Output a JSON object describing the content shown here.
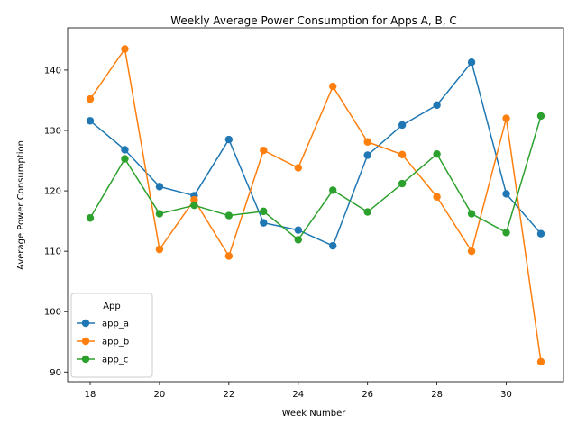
{
  "chart_data": {
    "type": "line",
    "title": "Weekly Average Power Consumption for Apps A, B, C",
    "xlabel": "Week Number",
    "ylabel": "Average Power Consumption",
    "x": [
      18,
      19,
      20,
      21,
      22,
      23,
      24,
      25,
      26,
      27,
      28,
      29,
      30,
      31
    ],
    "xlim": [
      17.35,
      31.65
    ],
    "ylim": [
      88.4,
      147.0
    ],
    "xticks": [
      18,
      20,
      22,
      24,
      26,
      28,
      30
    ],
    "yticks": [
      90,
      100,
      110,
      120,
      130,
      140
    ],
    "grid": false,
    "legend": {
      "title": "App",
      "placement": "lower-left"
    },
    "series": [
      {
        "name": "app_a",
        "color": "#1f77b4",
        "values": [
          131.6,
          126.8,
          120.7,
          119.2,
          128.5,
          114.7,
          113.5,
          110.9,
          125.9,
          130.9,
          134.2,
          141.3,
          119.5,
          112.9
        ]
      },
      {
        "name": "app_b",
        "color": "#ff7f0e",
        "values": [
          135.2,
          143.5,
          110.3,
          118.5,
          109.2,
          126.7,
          123.8,
          137.3,
          128.1,
          126.0,
          119.0,
          110.0,
          132.0,
          91.7
        ]
      },
      {
        "name": "app_c",
        "color": "#2ca02c",
        "values": [
          115.5,
          125.3,
          116.2,
          117.6,
          115.9,
          116.6,
          111.9,
          120.1,
          116.5,
          121.2,
          126.1,
          116.2,
          113.1,
          132.4
        ]
      }
    ]
  }
}
